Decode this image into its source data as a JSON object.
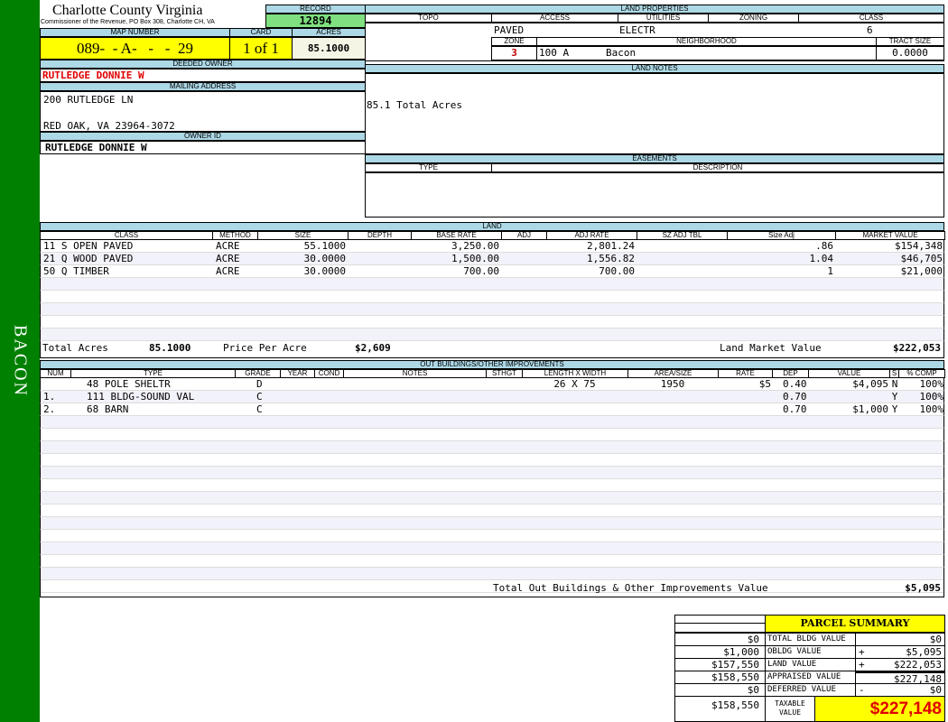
{
  "sidebar": {
    "label": "BACON",
    "color": "#008000"
  },
  "header": {
    "title": "Charlotte County Virginia",
    "subtitle": "Commissioner of the Revenue, PO Box 308, Charlotte CH, VA"
  },
  "record": {
    "label": "RECORD",
    "value": "12894"
  },
  "map": {
    "label": "MAP NUMBER",
    "value": "089-  - A-   -   -  29",
    "card_label": "CARD",
    "card": "1 of 1",
    "acres_label": "ACRES",
    "acres": "85.1000"
  },
  "owner": {
    "deeded_label": "DEEDED OWNER",
    "deeded": "RUTLEDGE DONNIE W",
    "mailing_label": "MAILING ADDRESS",
    "address1": "200 RUTLEDGE LN",
    "address2": "RED OAK, VA 23964-3072",
    "id_label": "OWNER ID",
    "id": "RUTLEDGE DONNIE W"
  },
  "land_props": {
    "label": "LAND PROPERTIES",
    "topo_label": "TOPO",
    "access_label": "ACCESS",
    "utilities_label": "UTILITIES",
    "zoning_label": "ZONING",
    "class_label": "CLASS",
    "access": "PAVED",
    "utilities": "ELECTR",
    "class": "6",
    "zone_label": "ZONE",
    "neighborhood_label": "NEIGHBORHOOD",
    "tract_label": "TRACT SIZE",
    "zone": "3",
    "neighborhood_code": "100 A",
    "neighborhood": "Bacon",
    "tract": "0.0000"
  },
  "land_notes": {
    "label": "LAND NOTES",
    "text": "85.1 Total Acres"
  },
  "easements": {
    "label": "EASEMENTS",
    "type_label": "TYPE",
    "desc_label": "DESCRIPTION"
  },
  "land": {
    "label": "LAND",
    "columns": [
      "CLASS",
      "METHOD",
      "SIZE",
      "DEPTH",
      "BASE RATE",
      "ADJ",
      "ADJ RATE",
      "SZ ADJ TBL",
      "Size Adj",
      "MARKET VALUE"
    ],
    "rows": [
      [
        "11 S OPEN PAVED",
        "ACRE",
        "55.1000",
        "",
        "3,250.00",
        "",
        "2,801.24",
        "",
        ".86",
        "$154,348"
      ],
      [
        "21 Q WOOD PAVED",
        "ACRE",
        "30.0000",
        "",
        "1,500.00",
        "",
        "1,556.82",
        "",
        "1.04",
        "$46,705"
      ],
      [
        "50 Q TIMBER",
        "ACRE",
        "30.0000",
        "",
        "700.00",
        "",
        "700.00",
        "",
        "1",
        "$21,000"
      ]
    ],
    "total_acres_label": "Total Acres",
    "total_acres": "85.1000",
    "ppa_label": "Price Per Acre",
    "ppa": "$2,609",
    "lmv_label": "Land Market Value",
    "lmv": "$222,053"
  },
  "outbuildings": {
    "label": "OUT BUILDINGS/OTHER IMPROVEMENTS",
    "columns": [
      "NUM",
      "TYPE",
      "GRADE",
      "YEAR",
      "COND",
      "NOTES",
      "STHGT",
      "LENGTH X WIDTH",
      "AREA/SIZE",
      "RATE",
      "DEP",
      "VALUE",
      "S",
      "% COMP"
    ],
    "rows": [
      [
        "",
        "48 POLE SHELTR",
        "D",
        "",
        "",
        "",
        "",
        "26 X 75",
        "1950",
        "$5",
        "0.40",
        "$4,095",
        "N",
        "100%"
      ],
      [
        "1.",
        "111 BLDG-SOUND VAL",
        "C",
        "",
        "",
        "",
        "",
        "",
        "",
        "",
        "0.70",
        "",
        "Y",
        "100%"
      ],
      [
        "2.",
        "68 BARN",
        "C",
        "",
        "",
        "",
        "",
        "",
        "",
        "",
        "0.70",
        "$1,000",
        "Y",
        "100%"
      ]
    ],
    "total_label": "Total Out Buildings & Other Improvements Value",
    "total": "$5,095"
  },
  "summary": {
    "title": "PARCEL SUMMARY",
    "rows": [
      {
        "prior": "$0",
        "label": "TOTAL BLDG VALUE",
        "op": "",
        "value": "$0"
      },
      {
        "prior": "$1,000",
        "label": "OBLDG VALUE",
        "op": "+",
        "value": "$5,095"
      },
      {
        "prior": "$157,550",
        "label": "LAND VALUE",
        "op": "+",
        "value": "$222,053"
      },
      {
        "prior": "$158,550",
        "label": "APPRAISED VALUE",
        "op": "",
        "value": "$227,148"
      },
      {
        "prior": "$0",
        "label": "DEFERRED VALUE",
        "op": "-",
        "value": "$0"
      }
    ],
    "taxable_prior": "$158,550",
    "taxable_label": "TAXABLE VALUE",
    "taxable": "$227,148"
  }
}
